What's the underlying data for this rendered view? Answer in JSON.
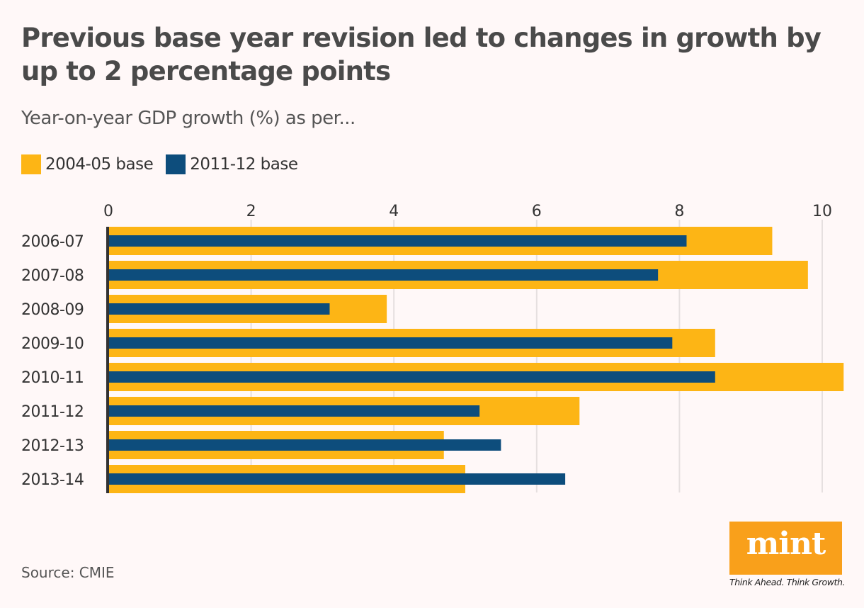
{
  "title": "Previous base year revision led to changes in growth by up to 2 percentage points",
  "subtitle": "Year-on-year GDP growth (%) as per...",
  "source": "Source: CMIE",
  "logo": {
    "text": "mint",
    "tagline": "Think Ahead. Think Growth."
  },
  "chart_data": {
    "type": "bar",
    "orientation": "horizontal",
    "categories": [
      "2006-07",
      "2007-08",
      "2008-09",
      "2009-10",
      "2010-11",
      "2011-12",
      "2012-13",
      "2013-14"
    ],
    "series": [
      {
        "name": "2004-05 base",
        "color": "#fdb515",
        "values": [
          9.3,
          9.8,
          3.9,
          8.5,
          10.3,
          6.6,
          4.7,
          5.0
        ]
      },
      {
        "name": "2011-12 base",
        "color": "#0d4d7c",
        "values": [
          8.1,
          7.7,
          3.1,
          7.9,
          8.5,
          5.2,
          5.5,
          6.4
        ]
      }
    ],
    "xticks": [
      0,
      2,
      4,
      6,
      8,
      10
    ],
    "xlim": [
      0,
      10.3
    ],
    "grid": true,
    "legend": "top-left"
  }
}
